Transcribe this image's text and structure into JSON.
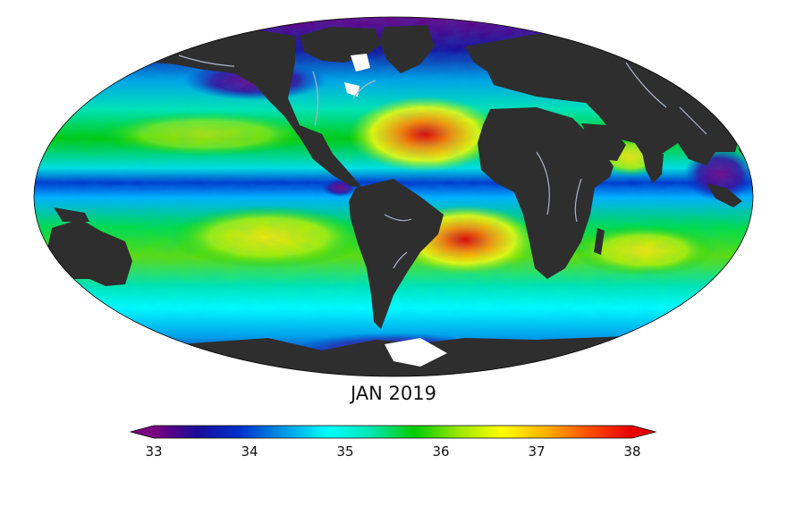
{
  "map": {
    "title": "JAN 2019",
    "projection": "mollweide",
    "colors": {
      "land": "#2e2e2e",
      "ice": "#ffffff",
      "rivers": "#a9b4cc",
      "outline": "#000000"
    }
  },
  "colorbar": {
    "min": 33,
    "max": 38,
    "ticks": [
      "33",
      "34",
      "35",
      "36",
      "37",
      "38"
    ],
    "extend": "both",
    "colormap": [
      "#7a0080",
      "#1a0c99",
      "#0033cc",
      "#0099e6",
      "#00ffff",
      "#00e6b0",
      "#00cc00",
      "#99e600",
      "#ffff00",
      "#ffb300",
      "#ff4d00",
      "#e60000"
    ]
  }
}
